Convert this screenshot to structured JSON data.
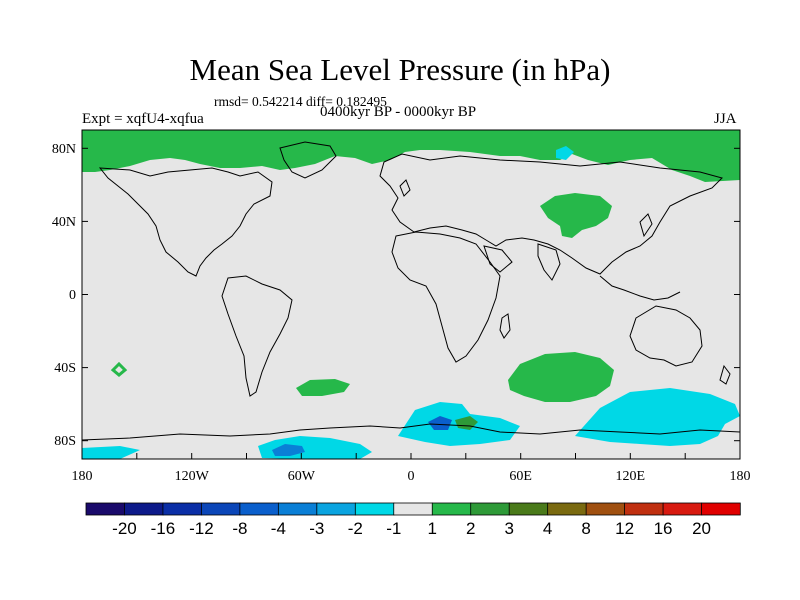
{
  "title": "Mean Sea Level Pressure (in hPa)",
  "stats_text": "rmsd= 0.542214 diff= 0.182495",
  "experiment_label": "Expt = xqfU4-xqfua",
  "period_label": "0400kyr BP - 0000kyr BP",
  "season_label": "JJA",
  "colors": {
    "background_field": "#e6e6e6",
    "positive_small": "#26b84a",
    "negative_small": "#00d8e6",
    "coastline": "#000000"
  },
  "axes": {
    "x_ticks": [
      "180",
      "120W",
      "60W",
      "0",
      "60E",
      "120E",
      "180"
    ],
    "y_ticks": [
      "80N",
      "40N",
      "0",
      "40S",
      "80S"
    ]
  },
  "colorbar": {
    "labels": [
      "-20",
      "-16",
      "-12",
      "-8",
      "-4",
      "-3",
      "-2",
      "-1",
      "1",
      "2",
      "3",
      "4",
      "8",
      "12",
      "16",
      "20"
    ],
    "colors": [
      "#1a0a6b",
      "#0d1a8a",
      "#0a2ea6",
      "#0b46b8",
      "#0a5fcc",
      "#0a7fd6",
      "#0aa4e0",
      "#00d8e6",
      "#e6e6e6",
      "#26b84a",
      "#2e9a38",
      "#4a7a1a",
      "#7a6a10",
      "#a05010",
      "#c03010",
      "#d81a10",
      "#e00000"
    ]
  }
}
